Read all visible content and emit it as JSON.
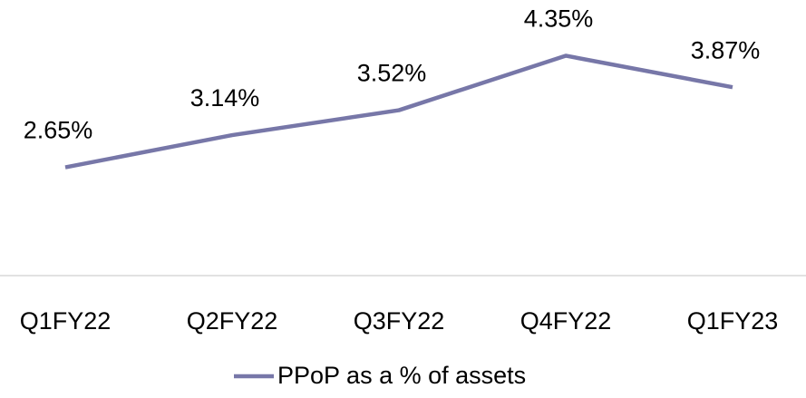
{
  "chart_data": {
    "type": "line",
    "categories": [
      "Q1FY22",
      "Q2FY22",
      "Q3FY22",
      "Q4FY22",
      "Q1FY23"
    ],
    "series": [
      {
        "name": "PPoP as a % of assets",
        "color": "#7777a8",
        "values": [
          2.65,
          3.14,
          3.52,
          4.35,
          3.87
        ],
        "value_labels": [
          "2.65%",
          "3.14%",
          "3.52%",
          "4.35%",
          "3.87%"
        ]
      }
    ],
    "ylim": [
      1,
      5
    ],
    "legend": "bottom"
  }
}
